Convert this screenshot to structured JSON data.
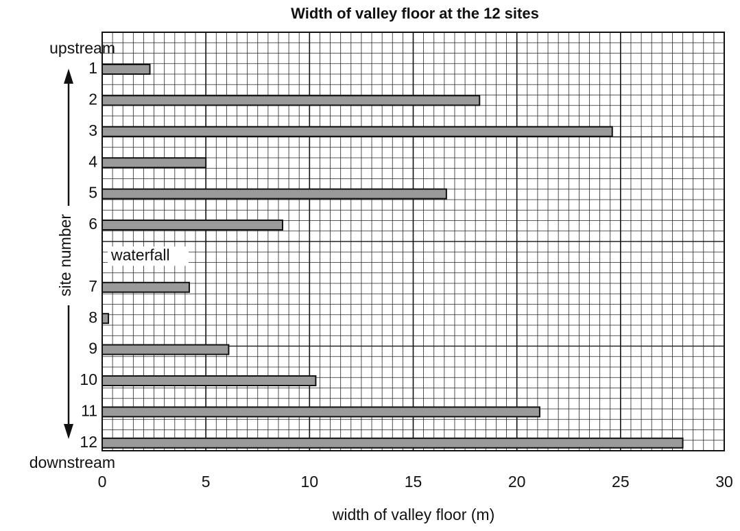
{
  "chart_data": {
    "type": "bar",
    "orientation": "horizontal",
    "title": "Width of valley floor at the 12 sites",
    "x_label": "width of valley floor (m)",
    "y_label": "site number",
    "top_label": "upstream",
    "bottom_label": "downstream",
    "annotation": "waterfall",
    "categories": [
      "1",
      "2",
      "3",
      "4",
      "5",
      "6",
      null,
      "7",
      "8",
      "9",
      "10",
      "11",
      "12"
    ],
    "values": [
      2.3,
      18.2,
      24.6,
      5.0,
      16.6,
      8.7,
      null,
      4.2,
      0.3,
      6.1,
      10.3,
      21.1,
      28.0
    ],
    "color": "#9a9a9a",
    "xlim": [
      0,
      30
    ],
    "xticks": [
      0,
      5,
      10,
      15,
      20,
      25,
      30
    ],
    "x_minor_step": 0.5,
    "grid": true
  }
}
